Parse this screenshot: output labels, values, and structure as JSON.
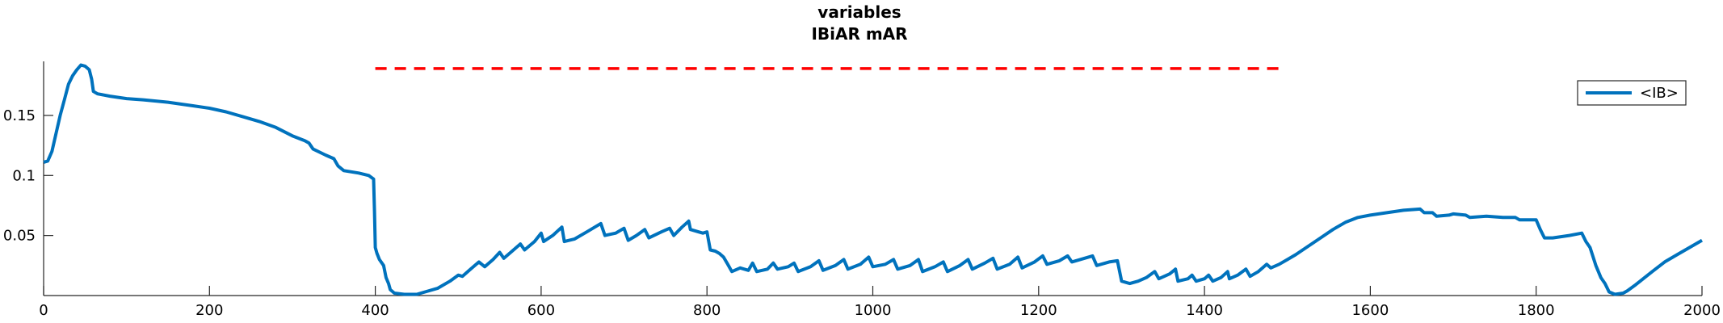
{
  "chart_data": {
    "type": "line",
    "title": "variables",
    "subtitle": "IBiAR mAR",
    "xlabel": "",
    "ylabel": "",
    "xlim": [
      0,
      2000
    ],
    "ylim": [
      0,
      0.195
    ],
    "xticks": [
      0,
      200,
      400,
      600,
      800,
      1000,
      1200,
      1400,
      1600,
      1800,
      2000
    ],
    "xtick_labels": [
      "0",
      "200",
      "400",
      "600",
      "800",
      "1000",
      "1200",
      "1400",
      "1600",
      "1800",
      "2000"
    ],
    "yticks": [
      0.05,
      0.1,
      0.15
    ],
    "ytick_labels": [
      "0.05",
      "0.1",
      "0.15"
    ],
    "grid": false,
    "legend_position": "top-right",
    "series": [
      {
        "name": "<IB>",
        "color": "#0072BD",
        "style": "solid",
        "points": [
          [
            0,
            0.111
          ],
          [
            5,
            0.112
          ],
          [
            10,
            0.12
          ],
          [
            15,
            0.135
          ],
          [
            20,
            0.15
          ],
          [
            25,
            0.163
          ],
          [
            30,
            0.176
          ],
          [
            35,
            0.183
          ],
          [
            40,
            0.188
          ],
          [
            45,
            0.192
          ],
          [
            50,
            0.191
          ],
          [
            55,
            0.188
          ],
          [
            58,
            0.18
          ],
          [
            60,
            0.17
          ],
          [
            65,
            0.168
          ],
          [
            80,
            0.166
          ],
          [
            100,
            0.164
          ],
          [
            120,
            0.163
          ],
          [
            150,
            0.161
          ],
          [
            180,
            0.158
          ],
          [
            200,
            0.156
          ],
          [
            220,
            0.153
          ],
          [
            240,
            0.149
          ],
          [
            260,
            0.145
          ],
          [
            280,
            0.14
          ],
          [
            300,
            0.133
          ],
          [
            315,
            0.129
          ],
          [
            320,
            0.127
          ],
          [
            325,
            0.122
          ],
          [
            340,
            0.117
          ],
          [
            350,
            0.114
          ],
          [
            355,
            0.108
          ],
          [
            362,
            0.104
          ],
          [
            380,
            0.102
          ],
          [
            392,
            0.1
          ],
          [
            398,
            0.097
          ],
          [
            399,
            0.07
          ],
          [
            400,
            0.04
          ],
          [
            402,
            0.035
          ],
          [
            405,
            0.03
          ],
          [
            410,
            0.025
          ],
          [
            413,
            0.015
          ],
          [
            416,
            0.01
          ],
          [
            418,
            0.005
          ],
          [
            423,
            0.002
          ],
          [
            435,
            0.001
          ],
          [
            450,
            0.001
          ],
          [
            460,
            0.003
          ],
          [
            475,
            0.006
          ],
          [
            490,
            0.012
          ],
          [
            500,
            0.017
          ],
          [
            505,
            0.016
          ],
          [
            515,
            0.022
          ],
          [
            525,
            0.028
          ],
          [
            532,
            0.024
          ],
          [
            542,
            0.03
          ],
          [
            550,
            0.036
          ],
          [
            555,
            0.031
          ],
          [
            565,
            0.037
          ],
          [
            575,
            0.043
          ],
          [
            580,
            0.038
          ],
          [
            592,
            0.045
          ],
          [
            600,
            0.052
          ],
          [
            603,
            0.045
          ],
          [
            614,
            0.05
          ],
          [
            625,
            0.057
          ],
          [
            628,
            0.045
          ],
          [
            640,
            0.047
          ],
          [
            655,
            0.053
          ],
          [
            672,
            0.06
          ],
          [
            677,
            0.05
          ],
          [
            690,
            0.052
          ],
          [
            700,
            0.056
          ],
          [
            705,
            0.046
          ],
          [
            715,
            0.05
          ],
          [
            725,
            0.055
          ],
          [
            730,
            0.048
          ],
          [
            745,
            0.053
          ],
          [
            755,
            0.056
          ],
          [
            760,
            0.05
          ],
          [
            770,
            0.057
          ],
          [
            778,
            0.062
          ],
          [
            780,
            0.055
          ],
          [
            790,
            0.053
          ],
          [
            795,
            0.052
          ],
          [
            800,
            0.053
          ],
          [
            804,
            0.038
          ],
          [
            810,
            0.037
          ],
          [
            815,
            0.035
          ],
          [
            820,
            0.032
          ],
          [
            825,
            0.026
          ],
          [
            830,
            0.02
          ],
          [
            840,
            0.023
          ],
          [
            850,
            0.021
          ],
          [
            855,
            0.027
          ],
          [
            860,
            0.02
          ],
          [
            873,
            0.022
          ],
          [
            880,
            0.027
          ],
          [
            885,
            0.022
          ],
          [
            898,
            0.024
          ],
          [
            905,
            0.027
          ],
          [
            910,
            0.02
          ],
          [
            925,
            0.024
          ],
          [
            935,
            0.029
          ],
          [
            940,
            0.021
          ],
          [
            955,
            0.025
          ],
          [
            965,
            0.03
          ],
          [
            970,
            0.022
          ],
          [
            985,
            0.026
          ],
          [
            995,
            0.032
          ],
          [
            1000,
            0.024
          ],
          [
            1015,
            0.026
          ],
          [
            1025,
            0.03
          ],
          [
            1030,
            0.022
          ],
          [
            1045,
            0.025
          ],
          [
            1055,
            0.03
          ],
          [
            1060,
            0.02
          ],
          [
            1075,
            0.024
          ],
          [
            1085,
            0.028
          ],
          [
            1090,
            0.02
          ],
          [
            1105,
            0.025
          ],
          [
            1115,
            0.03
          ],
          [
            1120,
            0.022
          ],
          [
            1135,
            0.027
          ],
          [
            1145,
            0.031
          ],
          [
            1150,
            0.022
          ],
          [
            1165,
            0.026
          ],
          [
            1175,
            0.032
          ],
          [
            1180,
            0.023
          ],
          [
            1195,
            0.028
          ],
          [
            1205,
            0.033
          ],
          [
            1210,
            0.026
          ],
          [
            1225,
            0.029
          ],
          [
            1235,
            0.033
          ],
          [
            1240,
            0.028
          ],
          [
            1255,
            0.031
          ],
          [
            1265,
            0.033
          ],
          [
            1270,
            0.025
          ],
          [
            1285,
            0.028
          ],
          [
            1295,
            0.029
          ],
          [
            1300,
            0.012
          ],
          [
            1310,
            0.01
          ],
          [
            1320,
            0.012
          ],
          [
            1330,
            0.015
          ],
          [
            1340,
            0.02
          ],
          [
            1345,
            0.014
          ],
          [
            1358,
            0.018
          ],
          [
            1365,
            0.022
          ],
          [
            1368,
            0.012
          ],
          [
            1380,
            0.014
          ],
          [
            1385,
            0.017
          ],
          [
            1390,
            0.012
          ],
          [
            1400,
            0.014
          ],
          [
            1405,
            0.017
          ],
          [
            1410,
            0.012
          ],
          [
            1420,
            0.015
          ],
          [
            1428,
            0.02
          ],
          [
            1430,
            0.014
          ],
          [
            1440,
            0.017
          ],
          [
            1450,
            0.022
          ],
          [
            1455,
            0.016
          ],
          [
            1465,
            0.02
          ],
          [
            1475,
            0.026
          ],
          [
            1480,
            0.023
          ],
          [
            1490,
            0.026
          ],
          [
            1500,
            0.03
          ],
          [
            1510,
            0.034
          ],
          [
            1525,
            0.041
          ],
          [
            1540,
            0.048
          ],
          [
            1555,
            0.055
          ],
          [
            1570,
            0.061
          ],
          [
            1585,
            0.065
          ],
          [
            1600,
            0.067
          ],
          [
            1620,
            0.069
          ],
          [
            1640,
            0.071
          ],
          [
            1660,
            0.072
          ],
          [
            1665,
            0.069
          ],
          [
            1675,
            0.069
          ],
          [
            1680,
            0.066
          ],
          [
            1695,
            0.067
          ],
          [
            1700,
            0.068
          ],
          [
            1715,
            0.067
          ],
          [
            1720,
            0.065
          ],
          [
            1740,
            0.066
          ],
          [
            1760,
            0.065
          ],
          [
            1775,
            0.065
          ],
          [
            1780,
            0.063
          ],
          [
            1795,
            0.063
          ],
          [
            1800,
            0.063
          ],
          [
            1805,
            0.055
          ],
          [
            1810,
            0.048
          ],
          [
            1820,
            0.048
          ],
          [
            1840,
            0.05
          ],
          [
            1855,
            0.052
          ],
          [
            1860,
            0.045
          ],
          [
            1865,
            0.04
          ],
          [
            1872,
            0.025
          ],
          [
            1878,
            0.015
          ],
          [
            1883,
            0.01
          ],
          [
            1888,
            0.003
          ],
          [
            1895,
            0.001
          ],
          [
            1905,
            0.002
          ],
          [
            1910,
            0.004
          ],
          [
            1920,
            0.009
          ],
          [
            1940,
            0.02
          ],
          [
            1955,
            0.028
          ],
          [
            1970,
            0.034
          ],
          [
            1985,
            0.04
          ],
          [
            2000,
            0.046
          ]
        ]
      },
      {
        "name": "",
        "color": "#FF0000",
        "style": "dashed",
        "points": [
          [
            400,
            0.189
          ],
          [
            1490,
            0.189
          ]
        ]
      }
    ]
  }
}
